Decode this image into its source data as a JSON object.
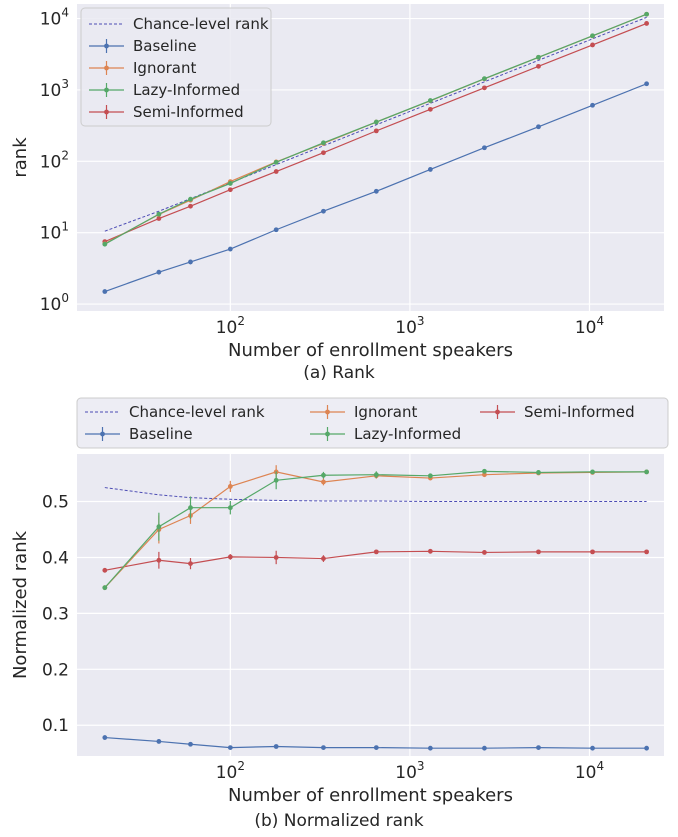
{
  "colors": {
    "plot_bg": "#eaeaf2",
    "grid": "#ffffff",
    "chance": "#4c4cb4",
    "baseline": "#4c72b0",
    "ignorant": "#dd8452",
    "lazy": "#55a868",
    "semi": "#c44e52"
  },
  "chart_data": [
    {
      "type": "line",
      "caption": "(a) Rank",
      "xlabel": "Number of enrollment speakers",
      "ylabel": "rank",
      "xscale": "log",
      "yscale": "log",
      "xlim": [
        14,
        26000
      ],
      "ylim": [
        0.8,
        16000
      ],
      "xticks": [
        100,
        1000,
        10000
      ],
      "xtick_labels": [
        {
          "base": "10",
          "exp": "2"
        },
        {
          "base": "10",
          "exp": "3"
        },
        {
          "base": "10",
          "exp": "4"
        }
      ],
      "yticks": [
        1,
        10,
        100,
        1000,
        10000
      ],
      "ytick_labels": [
        {
          "base": "10",
          "exp": "0"
        },
        {
          "base": "10",
          "exp": "1"
        },
        {
          "base": "10",
          "exp": "2"
        },
        {
          "base": "10",
          "exp": "3"
        },
        {
          "base": "10",
          "exp": "4"
        }
      ],
      "legend_position": "top-left",
      "x": [
        20,
        40,
        60,
        100,
        180,
        330,
        650,
        1300,
        2600,
        5200,
        10400,
        20800
      ],
      "series": [
        {
          "name": "Chance-level rank",
          "style": "dashed",
          "color_key": "chance",
          "values": [
            10.5,
            20,
            30,
            50,
            90,
            165,
            325,
            650,
            1300,
            2600,
            5200,
            10400
          ],
          "err": []
        },
        {
          "name": "Baseline",
          "style": "solid",
          "color_key": "baseline",
          "values": [
            1.5,
            2.8,
            3.9,
            5.9,
            11,
            20,
            38,
            77,
            155,
            305,
            610,
            1220
          ],
          "err": [
            0,
            0.15,
            0.3,
            0.2,
            0.3,
            0.6,
            1,
            2,
            3,
            6,
            10,
            20
          ]
        },
        {
          "name": "Ignorant",
          "style": "solid",
          "color_key": "ignorant",
          "values": [
            7,
            18,
            28.5,
            52,
            98,
            178,
            355,
            705,
            1430,
            2860,
            5720,
            11500
          ],
          "err": [
            0,
            1.2,
            2,
            2.5,
            4,
            6,
            10,
            20,
            40,
            70,
            130,
            250
          ]
        },
        {
          "name": "Lazy-Informed",
          "style": "solid",
          "color_key": "lazy",
          "values": [
            6.9,
            18.2,
            29.5,
            49,
            97,
            182,
            355,
            710,
            1440,
            2870,
            5740,
            11500
          ],
          "err": [
            0,
            1.2,
            2,
            2.5,
            4,
            6,
            10,
            20,
            40,
            70,
            130,
            250
          ]
        },
        {
          "name": "Semi-Informed",
          "style": "solid",
          "color_key": "semi",
          "values": [
            7.5,
            15.8,
            23.5,
            40,
            72,
            132,
            267,
            535,
            1070,
            2140,
            4270,
            8540
          ],
          "err": [
            0,
            0.8,
            1,
            1.5,
            3,
            5,
            8,
            12,
            20,
            40,
            80,
            150
          ]
        }
      ]
    },
    {
      "type": "line",
      "caption": "(b) Normalized rank",
      "xlabel": "Number of enrollment speakers",
      "ylabel": "Normalized rank",
      "xscale": "log",
      "yscale": "linear",
      "xlim": [
        14,
        26000
      ],
      "ylim": [
        0.045,
        0.585
      ],
      "xticks": [
        100,
        1000,
        10000
      ],
      "xtick_labels": [
        {
          "base": "10",
          "exp": "2"
        },
        {
          "base": "10",
          "exp": "3"
        },
        {
          "base": "10",
          "exp": "4"
        }
      ],
      "yticks": [
        0.1,
        0.2,
        0.3,
        0.4,
        0.5
      ],
      "ytick_labels": [
        "0.1",
        "0.2",
        "0.3",
        "0.4",
        "0.5"
      ],
      "legend_position": "top (above plot, 3 columns)",
      "x": [
        20,
        40,
        60,
        100,
        180,
        330,
        650,
        1300,
        2600,
        5200,
        10400,
        20800
      ],
      "series": [
        {
          "name": "Chance-level rank",
          "style": "dashed",
          "color_key": "chance",
          "values": [
            0.525,
            0.512,
            0.507,
            0.504,
            0.502,
            0.501,
            0.501,
            0.5,
            0.5,
            0.5,
            0.5,
            0.5
          ],
          "err": []
        },
        {
          "name": "Ignorant",
          "style": "solid",
          "color_key": "ignorant",
          "values": [
            0.346,
            0.45,
            0.475,
            0.527,
            0.553,
            0.535,
            0.546,
            0.542,
            0.548,
            0.551,
            0.552,
            0.553
          ],
          "err": [
            0,
            0.025,
            0.015,
            0.01,
            0.012,
            0.006,
            0.005,
            0.003,
            0.003,
            0.002,
            0.002,
            0.002
          ]
        },
        {
          "name": "Semi-Informed",
          "style": "solid",
          "color_key": "semi",
          "values": [
            0.377,
            0.395,
            0.389,
            0.401,
            0.4,
            0.398,
            0.41,
            0.411,
            0.409,
            0.41,
            0.41,
            0.41
          ],
          "err": [
            0,
            0.015,
            0.01,
            0.005,
            0.012,
            0.006,
            0.003,
            0.002,
            0.002,
            0.001,
            0.001,
            0.001
          ]
        },
        {
          "name": "Baseline",
          "style": "solid",
          "color_key": "baseline",
          "values": [
            0.078,
            0.071,
            0.066,
            0.06,
            0.062,
            0.06,
            0.06,
            0.059,
            0.059,
            0.06,
            0.059,
            0.059
          ],
          "err": [
            0,
            0.002,
            0.004,
            0.002,
            0.002,
            0.001,
            0.001,
            0.001,
            0.001,
            0.001,
            0.001,
            0.001
          ]
        },
        {
          "name": "Lazy-Informed",
          "style": "solid",
          "color_key": "lazy",
          "values": [
            0.346,
            0.455,
            0.489,
            0.489,
            0.538,
            0.547,
            0.548,
            0.546,
            0.554,
            0.552,
            0.553,
            0.553
          ],
          "err": [
            0,
            0.025,
            0.02,
            0.012,
            0.016,
            0.006,
            0.006,
            0.004,
            0.003,
            0.003,
            0.002,
            0.002
          ]
        }
      ]
    }
  ]
}
